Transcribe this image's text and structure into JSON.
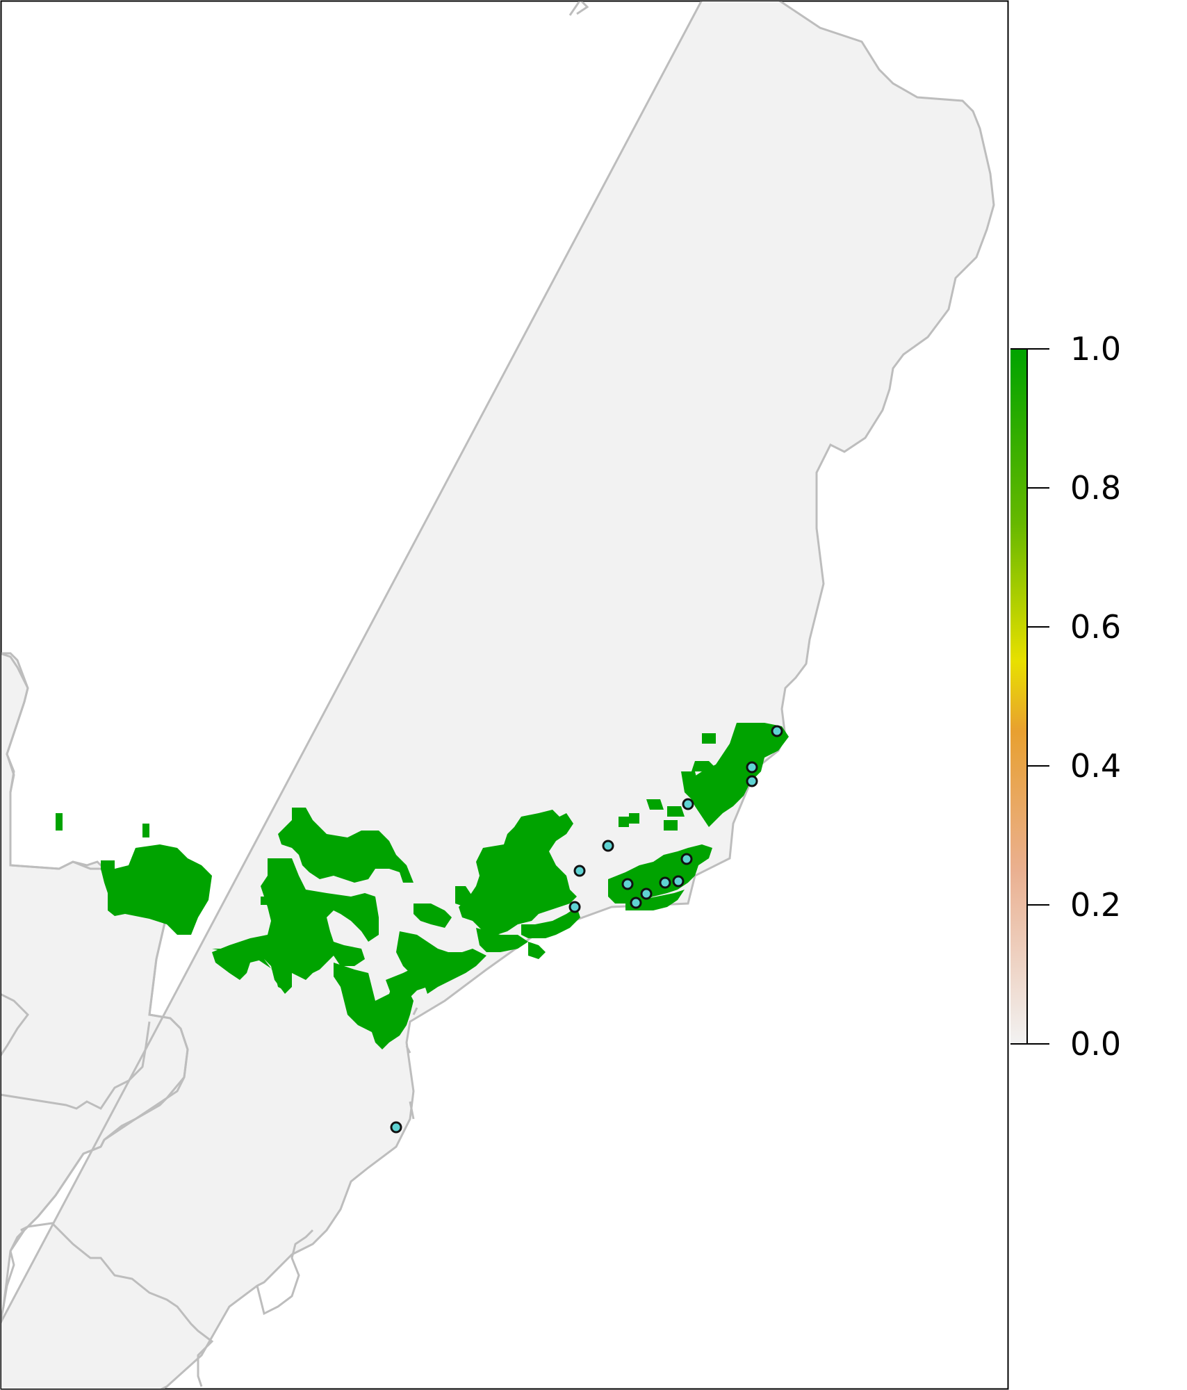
{
  "map": {
    "colors": {
      "background_land": "#f2f2f2",
      "border": "#bdbdbd",
      "suitable": "#00a300",
      "point_fill": "#5fd3d3",
      "point_stroke": "#111111"
    },
    "suitability_value_shown": 1.0,
    "occurrence_point_count": 15
  },
  "legend": {
    "ticks": [
      "1.0",
      "0.8",
      "0.6",
      "0.4",
      "0.2",
      "0.0"
    ],
    "min": 0.0,
    "max": 1.0,
    "gradient": [
      "#f2f2f2",
      "#eab090",
      "#e8a030",
      "#e8e000",
      "#66b800",
      "#00a300"
    ]
  }
}
